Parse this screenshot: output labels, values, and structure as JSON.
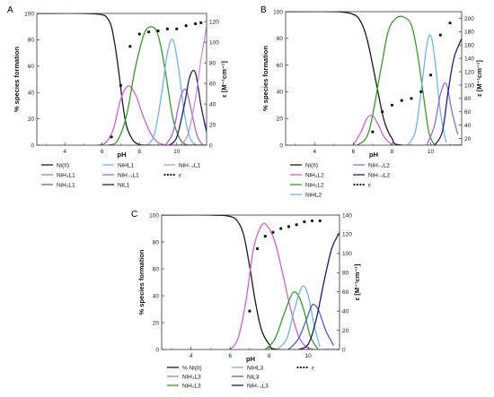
{
  "chart_data": [
    {
      "type": "line",
      "panel_label": "A",
      "xlabel": "pH",
      "ylabel": "% species formation",
      "y2label": "ε [M⁻¹cm⁻¹]",
      "xlim": [
        2.5,
        11.6
      ],
      "ylim": [
        0,
        100
      ],
      "y2lim": [
        0,
        128
      ],
      "xticks": [
        4,
        6,
        8,
        10
      ],
      "yticks": [
        0,
        20,
        40,
        60,
        80,
        100
      ],
      "y2ticks": [
        0,
        20,
        40,
        60,
        80,
        100,
        120
      ],
      "series": [
        {
          "name": "Ni(II)",
          "color": "#1a1a1a",
          "x": [
            2.5,
            5.0,
            6.0,
            6.3,
            6.5,
            6.7,
            6.9,
            7.1,
            7.3,
            7.6,
            7.9,
            8.5,
            11.6
          ],
          "y": [
            100,
            100,
            99,
            96,
            90,
            75,
            55,
            32,
            15,
            5,
            1,
            0,
            0
          ]
        },
        {
          "name": "NiH₃L1",
          "color": "#d060d0",
          "x": [
            5.8,
            6.2,
            6.6,
            7.0,
            7.4,
            7.8,
            8.2,
            8.6,
            9.0,
            9.5
          ],
          "y": [
            0,
            2,
            12,
            35,
            45,
            38,
            22,
            9,
            2,
            0
          ]
        },
        {
          "name": "NiH₂L1",
          "color": "#3a9a2a",
          "x": [
            6.3,
            6.8,
            7.3,
            7.8,
            8.3,
            8.8,
            9.1,
            9.4,
            9.8,
            10.2,
            10.6
          ],
          "y": [
            0,
            3,
            22,
            60,
            86,
            89,
            78,
            55,
            20,
            4,
            0
          ]
        },
        {
          "name": "NiHL1",
          "color": "#6bb6e6",
          "x": [
            8.4,
            8.8,
            9.2,
            9.5,
            9.8,
            10.1,
            10.4,
            10.7,
            11.0
          ],
          "y": [
            0,
            8,
            40,
            70,
            80,
            58,
            25,
            6,
            0
          ]
        },
        {
          "name": "NiH₋₁L1",
          "color": "#9a6ad8",
          "x": [
            9.4,
            9.8,
            10.2,
            10.5,
            10.8,
            11.1,
            11.4
          ],
          "y": [
            0,
            10,
            36,
            42,
            25,
            7,
            0
          ]
        },
        {
          "name": "NiL1",
          "color": "#2a1a7a",
          "x": [
            9.6,
            10.0,
            10.4,
            10.7,
            11.0,
            11.3,
            11.6
          ],
          "y": [
            0,
            6,
            30,
            52,
            55,
            30,
            10
          ]
        },
        {
          "name": "NiH₋₂L1",
          "color": "#c890d8",
          "x": [
            10.2,
            10.6,
            11.0,
            11.3,
            11.6
          ],
          "y": [
            0,
            8,
            35,
            65,
            90
          ]
        }
      ],
      "epsilon": {
        "name": "ε",
        "x": [
          6.5,
          7.0,
          7.5,
          8.0,
          8.5,
          9.0,
          9.5,
          10.0,
          10.5,
          11.0,
          11.3
        ],
        "y": [
          8,
          58,
          96,
          108,
          110,
          111,
          113,
          113,
          116,
          118,
          119
        ]
      }
    },
    {
      "type": "line",
      "panel_label": "B",
      "xlabel": "pH",
      "ylabel": "% species formation",
      "y2label": "ε [M⁻¹cm⁻¹]",
      "xlim": [
        2.5,
        11.6
      ],
      "ylim": [
        0,
        100
      ],
      "y2lim": [
        10,
        210
      ],
      "xticks": [
        4,
        6,
        8,
        10
      ],
      "yticks": [
        0,
        20,
        40,
        60,
        80,
        100
      ],
      "y2ticks": [
        20,
        40,
        60,
        80,
        100,
        120,
        140,
        160,
        180,
        200
      ],
      "series": [
        {
          "name": "Ni(II)",
          "color": "#1a1a1a",
          "x": [
            2.5,
            5.0,
            6.0,
            6.4,
            6.7,
            7.0,
            7.3,
            7.6,
            8.0,
            8.5,
            11.6
          ],
          "y": [
            100,
            100,
            98,
            92,
            80,
            60,
            38,
            18,
            5,
            0,
            0
          ]
        },
        {
          "name": "NiH₃L2",
          "color": "#d060d0",
          "x": [
            6.0,
            6.4,
            6.7,
            7.0,
            7.3,
            7.6,
            8.0
          ],
          "y": [
            0,
            10,
            20,
            22,
            15,
            6,
            0
          ]
        },
        {
          "name": "NiH₂L2",
          "color": "#3a9a2a",
          "x": [
            6.2,
            6.8,
            7.4,
            7.8,
            8.2,
            8.6,
            9.0,
            9.3,
            9.6,
            9.9,
            10.2
          ],
          "y": [
            0,
            10,
            55,
            85,
            95,
            96,
            90,
            70,
            40,
            10,
            0
          ]
        },
        {
          "name": "NiHL2",
          "color": "#6bb6e6",
          "x": [
            8.8,
            9.2,
            9.5,
            9.8,
            10.0,
            10.2,
            10.5,
            10.8
          ],
          "y": [
            0,
            10,
            40,
            75,
            82,
            66,
            25,
            2
          ]
        },
        {
          "name": "NiH₋₁L2",
          "color": "#9a6ad8",
          "x": [
            9.8,
            10.2,
            10.5,
            10.8,
            11.1,
            11.4
          ],
          "y": [
            0,
            15,
            38,
            46,
            25,
            8
          ]
        },
        {
          "name": "NiH₋₂L2",
          "color": "#2a1a7a",
          "x": [
            10.2,
            10.6,
            10.9,
            11.2,
            11.6
          ],
          "y": [
            0,
            10,
            40,
            65,
            80
          ]
        }
      ],
      "epsilon": {
        "name": "ε",
        "x": [
          7.0,
          7.5,
          8.0,
          8.5,
          9.0,
          9.5,
          10.0,
          10.5,
          11.0
        ],
        "y": [
          30,
          60,
          70,
          77,
          80,
          90,
          115,
          175,
          193
        ]
      }
    },
    {
      "type": "line",
      "panel_label": "C",
      "xlabel": "pH",
      "ylabel": "% species formation",
      "y2label": "ε [M⁻¹cm⁻¹]",
      "xlim": [
        2.5,
        11.6
      ],
      "ylim": [
        0,
        100
      ],
      "y2lim": [
        0,
        140
      ],
      "xticks": [
        4,
        6,
        8,
        10
      ],
      "yticks": [
        0,
        20,
        40,
        60,
        80,
        100
      ],
      "y2ticks": [
        0,
        20,
        40,
        60,
        80,
        100,
        120,
        140
      ],
      "series": [
        {
          "name": "% Ni(II)",
          "color": "#1a1a1a",
          "x": [
            2.5,
            5.0,
            6.0,
            6.4,
            6.7,
            7.0,
            7.3,
            7.6,
            8.0,
            8.5,
            11.6
          ],
          "y": [
            100,
            100,
            99,
            95,
            85,
            62,
            35,
            15,
            4,
            0,
            0
          ]
        },
        {
          "name": "NiH₃L3",
          "color": "#d060d0",
          "x": [
            6.0,
            6.4,
            6.8,
            7.2,
            7.6,
            7.9,
            8.3,
            8.7,
            9.1,
            9.5,
            9.9,
            10.3
          ],
          "y": [
            0,
            8,
            35,
            75,
            92,
            92,
            80,
            56,
            30,
            10,
            2,
            0
          ]
        },
        {
          "name": "NiH₂L3",
          "color": "#3a9a2a",
          "x": [
            7.8,
            8.3,
            8.8,
            9.2,
            9.5,
            9.8,
            10.1,
            10.5
          ],
          "y": [
            0,
            8,
            28,
            42,
            40,
            28,
            10,
            0
          ]
        },
        {
          "name": "NiHL3",
          "color": "#6bb6e6",
          "x": [
            8.4,
            8.9,
            9.3,
            9.7,
            10.0,
            10.3,
            10.6
          ],
          "y": [
            0,
            8,
            30,
            47,
            40,
            18,
            2
          ]
        },
        {
          "name": "NiL3",
          "color": "#4a60c8",
          "x": [
            9.0,
            9.5,
            9.9,
            10.2,
            10.5,
            10.9,
            11.3
          ],
          "y": [
            0,
            8,
            22,
            33,
            30,
            14,
            3
          ]
        },
        {
          "name": "NiH₋₁L3",
          "color": "#1a1a6a",
          "x": [
            9.5,
            10.0,
            10.4,
            10.8,
            11.2,
            11.6
          ],
          "y": [
            0,
            4,
            22,
            50,
            75,
            87
          ]
        }
      ],
      "epsilon": {
        "name": "ε",
        "x": [
          7.0,
          7.4,
          7.8,
          8.2,
          8.6,
          9.0,
          9.4,
          9.8,
          10.2,
          10.6
        ],
        "y": [
          40,
          105,
          118,
          122,
          126,
          128,
          130,
          133,
          134,
          134
        ]
      }
    }
  ]
}
